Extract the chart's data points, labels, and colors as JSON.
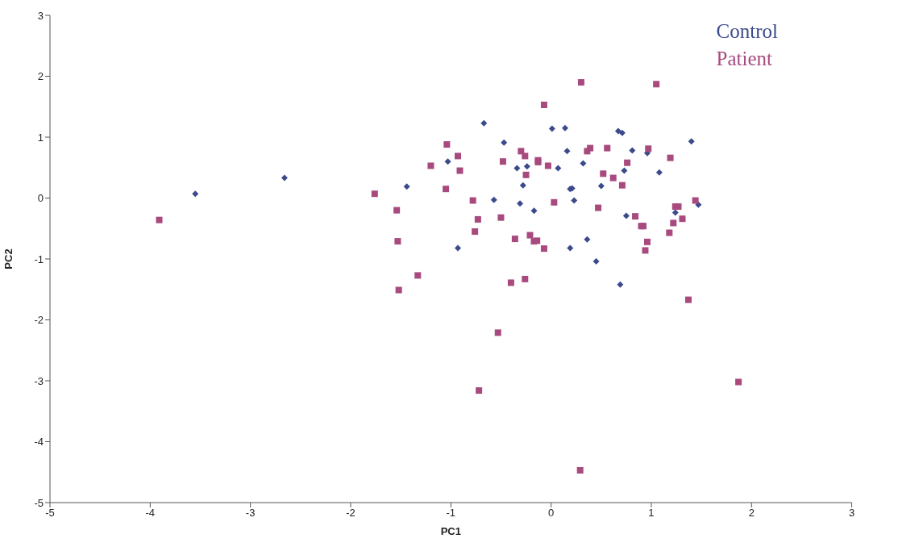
{
  "chart_data": {
    "type": "scatter",
    "xlabel": "PC1",
    "ylabel": "PC2",
    "xlim": [
      -5,
      3
    ],
    "ylim": [
      -5,
      3
    ],
    "xticks": [
      -5,
      -4,
      -3,
      -2,
      -1,
      0,
      1,
      2,
      3
    ],
    "yticks": [
      -5,
      -4,
      -3,
      -2,
      -1,
      0,
      1,
      2,
      3
    ],
    "grid": false,
    "legend": "top right",
    "series": [
      {
        "name": "Control",
        "color": "#3b4a8a",
        "marker": "diamond",
        "x": [
          -3.55,
          -2.66,
          -1.44,
          -0.67,
          -0.47,
          -0.93,
          -0.57,
          -0.31,
          -0.17,
          0.45,
          0.69,
          0.81,
          0.73,
          1.08,
          -1.03,
          -0.34,
          -0.24,
          -0.28,
          0.01,
          0.14,
          0.16,
          0.07,
          0.32,
          0.19,
          0.21,
          0.23,
          0.19,
          0.5,
          0.67,
          0.71,
          0.75,
          1.4,
          0.96,
          1.24,
          1.47,
          0.36
        ],
        "values": [
          0.07,
          0.33,
          0.19,
          1.23,
          0.91,
          -0.82,
          -0.03,
          -0.09,
          -0.21,
          -1.04,
          -1.42,
          0.78,
          0.45,
          0.42,
          0.6,
          0.49,
          0.52,
          0.21,
          1.14,
          1.15,
          0.77,
          0.49,
          0.57,
          0.15,
          0.16,
          -0.04,
          -0.82,
          0.2,
          1.1,
          1.07,
          -0.29,
          0.93,
          0.74,
          -0.24,
          -0.11,
          -0.68
        ]
      },
      {
        "name": "Patient",
        "color": "#a84a7e",
        "marker": "square",
        "x": [
          -3.91,
          -1.76,
          -1.54,
          -1.53,
          -1.52,
          -1.33,
          -1.2,
          -1.04,
          -0.93,
          -0.91,
          -1.05,
          -0.78,
          -0.73,
          -0.76,
          -0.5,
          -0.36,
          -0.4,
          -0.26,
          -0.21,
          -0.17,
          -0.14,
          -0.07,
          0.03,
          -0.48,
          -0.3,
          -0.26,
          -0.25,
          -0.13,
          -0.13,
          -0.03,
          -0.07,
          0.3,
          0.36,
          0.39,
          0.52,
          0.47,
          1.05,
          0.56,
          0.97,
          1.19,
          0.76,
          0.62,
          0.71,
          0.84,
          0.9,
          0.92,
          0.96,
          0.94,
          1.22,
          1.18,
          1.24,
          1.27,
          1.31,
          1.44,
          1.37,
          -0.53,
          -0.72,
          0.29,
          1.87
        ],
        "values": [
          -0.36,
          0.07,
          -0.2,
          -0.71,
          -1.51,
          -1.27,
          0.53,
          0.88,
          0.69,
          0.45,
          0.15,
          -0.04,
          -0.35,
          -0.55,
          -0.32,
          -0.67,
          -1.39,
          -1.33,
          -0.61,
          -0.71,
          -0.7,
          -0.83,
          -0.07,
          0.6,
          0.77,
          0.69,
          0.38,
          0.62,
          0.59,
          0.53,
          1.53,
          1.9,
          0.77,
          0.82,
          0.4,
          -0.16,
          1.87,
          0.82,
          0.81,
          0.66,
          0.58,
          0.33,
          0.21,
          -0.3,
          -0.46,
          -0.46,
          -0.72,
          -0.86,
          -0.41,
          -0.57,
          -0.14,
          -0.14,
          -0.34,
          -0.04,
          -1.67,
          -2.21,
          -3.16,
          -4.47,
          -3.02
        ]
      }
    ]
  }
}
